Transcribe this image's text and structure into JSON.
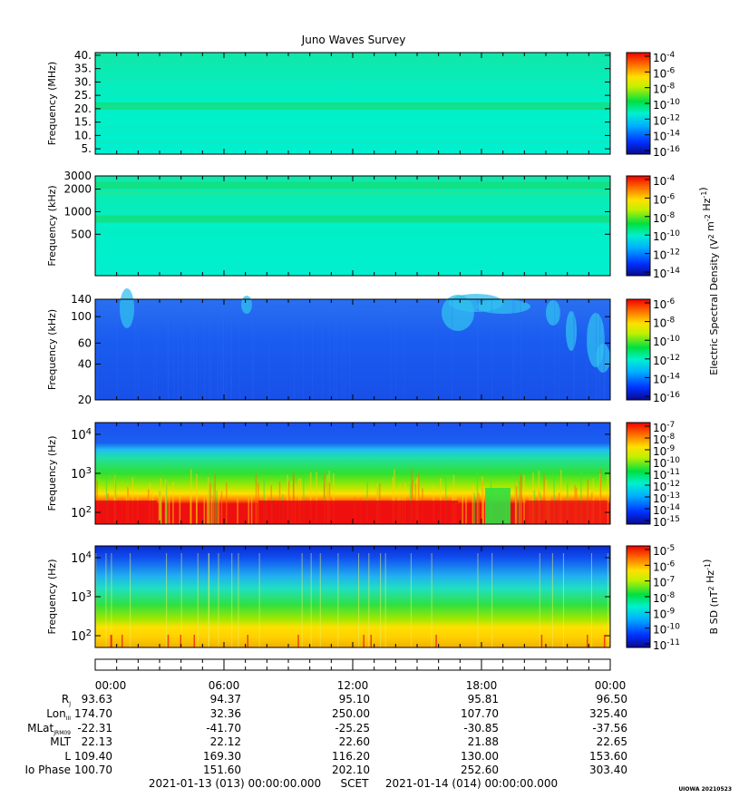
{
  "title": "Juno Waves Survey",
  "footer": {
    "start": "2021-01-13 (013) 00:00:00.000",
    "axis_label": "SCET",
    "end": "2021-01-14 (014) 00:00:00.000",
    "stamp": "UIOWA 20210523"
  },
  "chart_data": [
    {
      "type": "heatmap",
      "panel": "hfr-high",
      "ylabel": "Frequency (MHz)",
      "yticks": [
        "40.",
        "35.",
        "30.",
        "25.",
        "20.",
        "15.",
        "10.",
        "5."
      ],
      "yscale": "linear",
      "ylim": [
        3,
        41
      ],
      "colorbar": {
        "labels": [
          "10^-4",
          "10^-6",
          "10^-8",
          "10^-10",
          "10^-12",
          "10^-14",
          "10^-16"
        ]
      },
      "bands": [
        {
          "value": 21,
          "color": "#11e080"
        }
      ],
      "background": "#00f0c8"
    },
    {
      "type": "heatmap",
      "panel": "hfr-low",
      "ylabel": "Frequency (kHz)",
      "yticks": [
        "3000",
        "2000",
        "1000",
        "500"
      ],
      "yscale": "log",
      "ylim": [
        140,
        3000
      ],
      "colorbar": {
        "labels": [
          "10^-4",
          "10^-6",
          "10^-8",
          "10^-10",
          "10^-12",
          "10^-14"
        ]
      },
      "bands": [
        {
          "value": 2250,
          "color": "#11e080"
        },
        {
          "value": 800,
          "color": "#11e080"
        }
      ],
      "background": "#00f0c8"
    },
    {
      "type": "heatmap",
      "panel": "lfr-high",
      "ylabel": "Frequency (kHz)",
      "yticks": [
        "140",
        "100",
        "60",
        "40",
        "20"
      ],
      "yscale": "log",
      "ylim": [
        20,
        140
      ],
      "colorbar": {
        "labels": [
          "10^-6",
          "10^-8",
          "10^-10",
          "10^-12",
          "10^-14",
          "10^-16"
        ]
      },
      "colorbar_title": "Electric Spectral Density (V^2 m^-2 Hz^-1)",
      "background": "#1a5cf0"
    },
    {
      "type": "heatmap",
      "panel": "lfr-low",
      "ylabel": "Frequency (Hz)",
      "yticks": [
        "10^4",
        "10^3",
        "10^2"
      ],
      "yscale": "log",
      "ylim": [
        50,
        20000
      ],
      "colorbar": {
        "labels": [
          "10^-7",
          "10^-8",
          "10^-9",
          "10^-10",
          "10^-11",
          "10^-12",
          "10^-13",
          "10^-14",
          "10^-15"
        ]
      }
    },
    {
      "type": "heatmap",
      "panel": "magnetic",
      "ylabel": "Frequency (Hz)",
      "yticks": [
        "10^4",
        "10^3",
        "10^2"
      ],
      "yscale": "log",
      "ylim": [
        50,
        20000
      ],
      "colorbar": {
        "labels": [
          "10^-5",
          "10^-6",
          "10^-7",
          "10^-8",
          "10^-9",
          "10^-10",
          "10^-11"
        ]
      },
      "colorbar_title": "B SD (nT^2 Hz^-1)"
    }
  ],
  "ephemeris": {
    "times": [
      "00:00",
      "06:00",
      "12:00",
      "18:00",
      "00:00"
    ],
    "rows": [
      {
        "label": "Rj",
        "values": [
          "93.63",
          "94.37",
          "95.10",
          "95.81",
          "96.50"
        ]
      },
      {
        "label": "LonIII",
        "values": [
          "174.70",
          "32.36",
          "250.00",
          "107.70",
          "325.40"
        ]
      },
      {
        "label": "MLatJRM09",
        "values": [
          "-22.31",
          "-41.70",
          "-25.25",
          "-30.85",
          "-37.56"
        ]
      },
      {
        "label": "MLT",
        "values": [
          "22.13",
          "22.12",
          "22.60",
          "21.88",
          "22.65"
        ]
      },
      {
        "label": "L",
        "values": [
          "109.40",
          "169.30",
          "116.20",
          "130.00",
          "153.60"
        ]
      },
      {
        "label": "Io Phase",
        "values": [
          "100.70",
          "151.60",
          "202.10",
          "252.60",
          "303.40"
        ]
      }
    ]
  }
}
